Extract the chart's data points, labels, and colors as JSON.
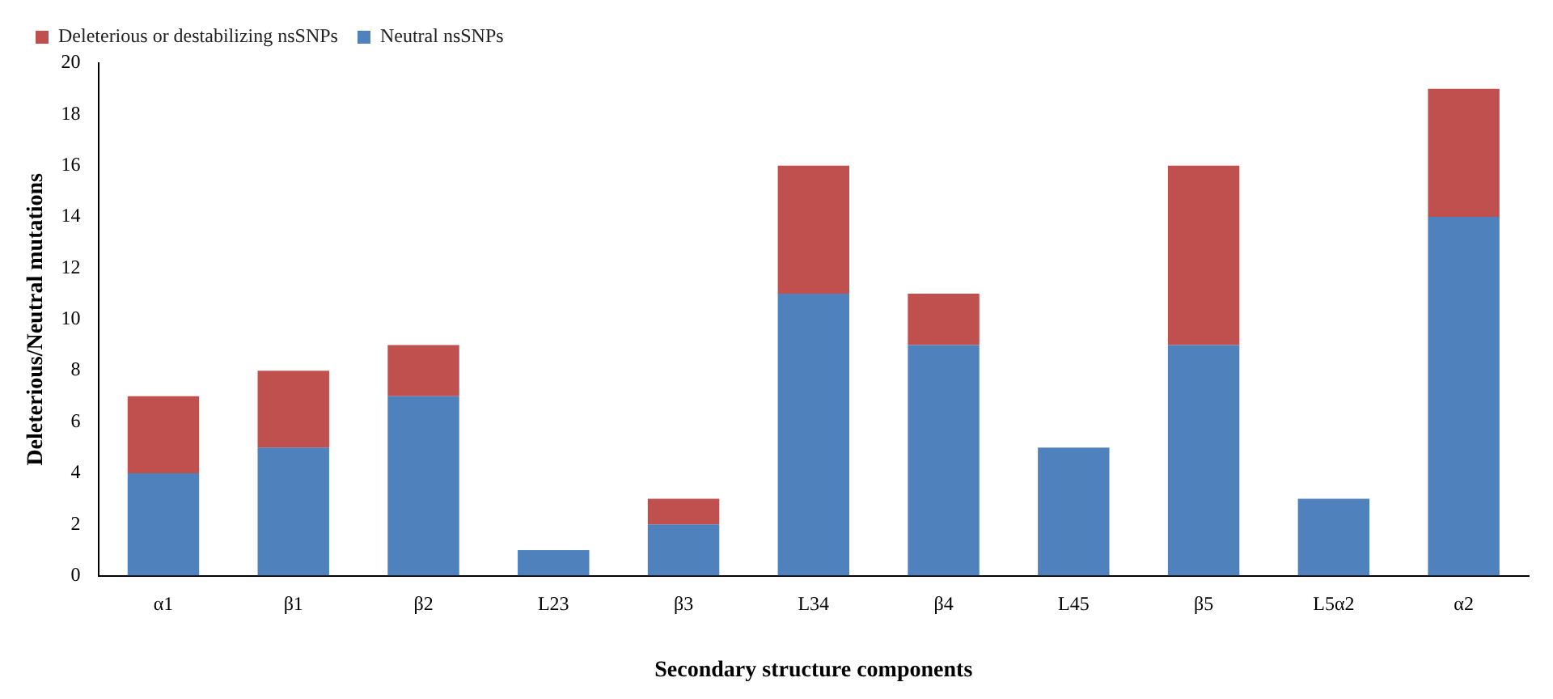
{
  "chart_data": {
    "type": "bar",
    "stacked": true,
    "xlabel": "Secondary structure components",
    "ylabel": "Deleterious/Neutral mutations",
    "categories": [
      "α1",
      "β1",
      "β2",
      "L23",
      "β3",
      "L34",
      "β4",
      "L45",
      "β5",
      "L5α2",
      "α2"
    ],
    "series": [
      {
        "name": "Neutral nsSNPs",
        "color": "#4f81bd",
        "values": [
          4,
          5,
          7,
          1,
          2,
          11,
          9,
          5,
          9,
          3,
          14
        ]
      },
      {
        "name": "Deleterious or destabilizing nsSNPs",
        "color": "#c0504d",
        "values": [
          3,
          3,
          2,
          0,
          1,
          5,
          2,
          0,
          7,
          0,
          5
        ]
      }
    ],
    "ylim": [
      0,
      20
    ],
    "yticks": [
      0,
      2,
      4,
      6,
      8,
      10,
      12,
      14,
      16,
      18,
      20
    ],
    "grid": false,
    "legend": "top left"
  }
}
